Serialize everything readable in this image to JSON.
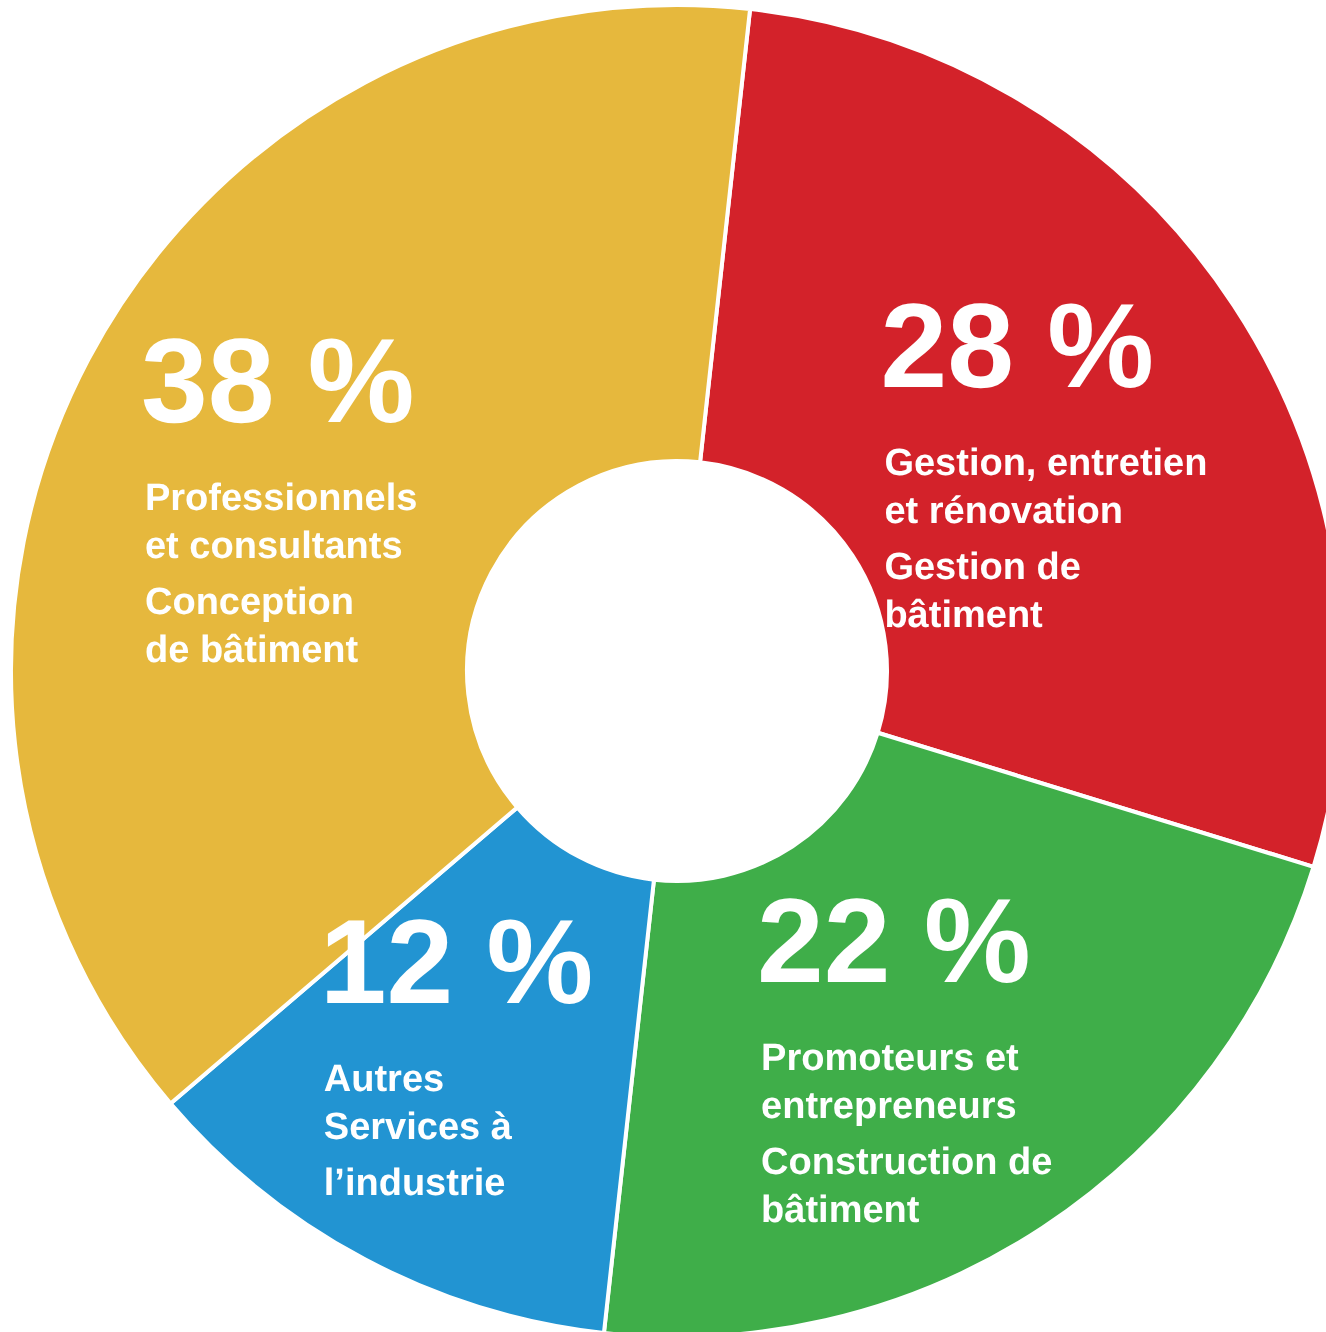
{
  "chart_data": {
    "type": "donut",
    "categories": [
      "Gestion, entretien\net rénovation\nGestion de\nbâtiment",
      "Promoteurs et\nentrepreneurs\nConstruction de\nbâtiment",
      "Autres\nServices à\nl’industrie",
      "Professionnels\net consultants\nConception\nde bâtiment"
    ],
    "values": [
      28,
      22,
      12,
      38
    ],
    "colors": [
      "#d3222a",
      "#3fae49",
      "#2294d2",
      "#e6b83d"
    ],
    "value_labels": [
      "28 %",
      "22 %",
      "12 %",
      "38 %"
    ]
  }
}
